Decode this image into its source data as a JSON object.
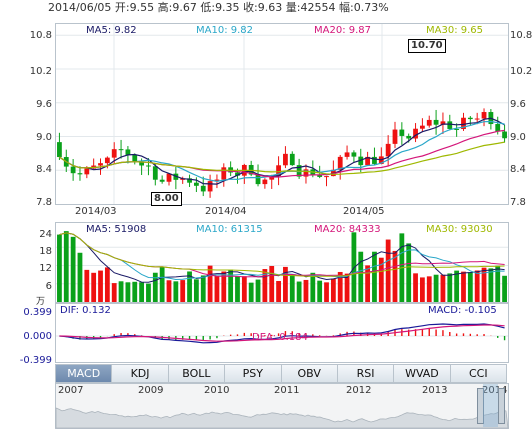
{
  "info": {
    "date": "2014/06/05",
    "open_label": "开:",
    "open": "9.55",
    "high_label": "高:",
    "high": "9.67",
    "low_label": "低:",
    "low": "9.35",
    "close_label": "收:",
    "close": "9.63",
    "volume_label": "量:",
    "volume": "42554",
    "change_label": "幅:",
    "change": "0.73%"
  },
  "price_panel": {
    "ma": [
      {
        "label": "MA5: 9.82",
        "color": "#1a1a66"
      },
      {
        "label": "MA10: 9.82",
        "color": "#2aa7c9"
      },
      {
        "label": "MA20: 9.87",
        "color": "#d4167a"
      },
      {
        "label": "MA30: 9.65",
        "color": "#9fb800"
      }
    ],
    "y_ticks": [
      "10.8",
      "10.2",
      "9.6",
      "9.0",
      "8.4",
      "7.8"
    ],
    "x_labels": [
      "2014/03",
      "2014/04",
      "2014/05"
    ],
    "high_callout": "10.70",
    "low_callout": "8.00"
  },
  "volume_panel": {
    "ma": [
      {
        "label": "MA5: 51908",
        "color": "#1a1a66"
      },
      {
        "label": "MA10: 61315",
        "color": "#2aa7c9"
      },
      {
        "label": "MA20: 84333",
        "color": "#d4167a"
      },
      {
        "label": "MA30: 93030",
        "color": "#9fb800"
      }
    ],
    "y_ticks": [
      "24",
      "18",
      "12",
      "6"
    ],
    "unit": "万"
  },
  "macd_panel": {
    "dif_label": "DIF: 0.132",
    "dea_label": "DEA: 0.184",
    "macd_label": "MACD: -0.105",
    "y_ticks": [
      "0.399",
      "0.000",
      "-0.399"
    ]
  },
  "tabs": [
    "MACD",
    "KDJ",
    "BOLL",
    "PSY",
    "OBV",
    "RSI",
    "WVAD",
    "CCI"
  ],
  "active_tab": "MACD",
  "timeline": {
    "years": [
      "2007",
      "2009",
      "2010",
      "2011",
      "2012",
      "2013",
      "2014"
    ]
  },
  "colors": {
    "up": "#ee1111",
    "down": "#0aa11a",
    "dif": "#1a1a99",
    "dea": "#d4167a"
  }
}
